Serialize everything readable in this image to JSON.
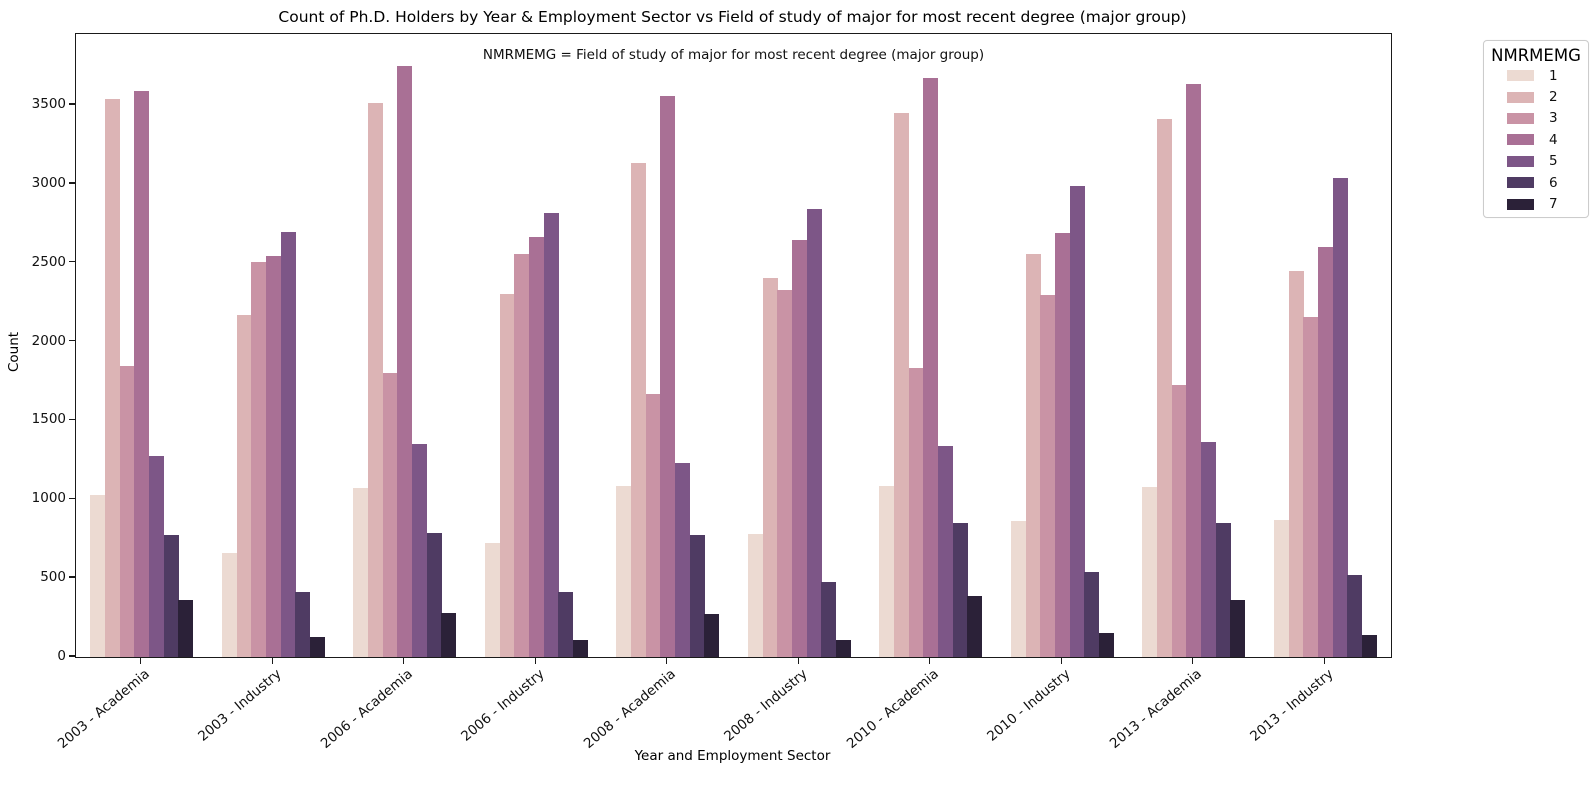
{
  "chart_data": {
    "type": "bar",
    "title": "Count of Ph.D. Holders by Year & Employment Sector vs Field of study of major for most recent degree (major group)",
    "annotation": "NMRMEMG = Field of study of major for most recent degree (major group)",
    "xlabel": "Year and Employment Sector",
    "ylabel": "Count",
    "categories": [
      "2003 - Academia",
      "2003 - Industry",
      "2006 - Academia",
      "2006 - Industry",
      "2008 - Academia",
      "2008 - Industry",
      "2010 - Academia",
      "2010 - Industry",
      "2013 - Academia",
      "2013 - Industry"
    ],
    "series": [
      {
        "name": "1",
        "color": "#ecdad2",
        "values": [
          1025,
          660,
          1070,
          720,
          1085,
          780,
          1085,
          865,
          1080,
          870
        ]
      },
      {
        "name": "2",
        "color": "#dcb4b5",
        "values": [
          3540,
          2170,
          3510,
          2300,
          3135,
          2400,
          3450,
          2555,
          3410,
          2445
        ]
      },
      {
        "name": "3",
        "color": "#c993a5",
        "values": [
          1845,
          2505,
          1800,
          2555,
          1670,
          2330,
          1830,
          2295,
          1725,
          2155
        ]
      },
      {
        "name": "4",
        "color": "#a97095",
        "values": [
          3590,
          2545,
          3750,
          2660,
          3555,
          2645,
          3670,
          2690,
          3630,
          2600
        ]
      },
      {
        "name": "5",
        "color": "#7d5687",
        "values": [
          1275,
          2695,
          1350,
          2815,
          1230,
          2840,
          1340,
          2985,
          1365,
          3040
        ]
      },
      {
        "name": "6",
        "color": "#4f3b63",
        "values": [
          775,
          415,
          785,
          415,
          775,
          475,
          850,
          540,
          850,
          520
        ]
      },
      {
        "name": "7",
        "color": "#2b2138",
        "values": [
          360,
          130,
          280,
          105,
          270,
          105,
          385,
          150,
          360,
          140
        ]
      }
    ],
    "ylim": [
      0,
      3950
    ],
    "yticks": [
      0,
      500,
      1000,
      1500,
      2000,
      2500,
      3000,
      3500
    ],
    "grid": false,
    "legend": {
      "title": "NMRMEMG",
      "position": "upper-right-outside"
    }
  }
}
